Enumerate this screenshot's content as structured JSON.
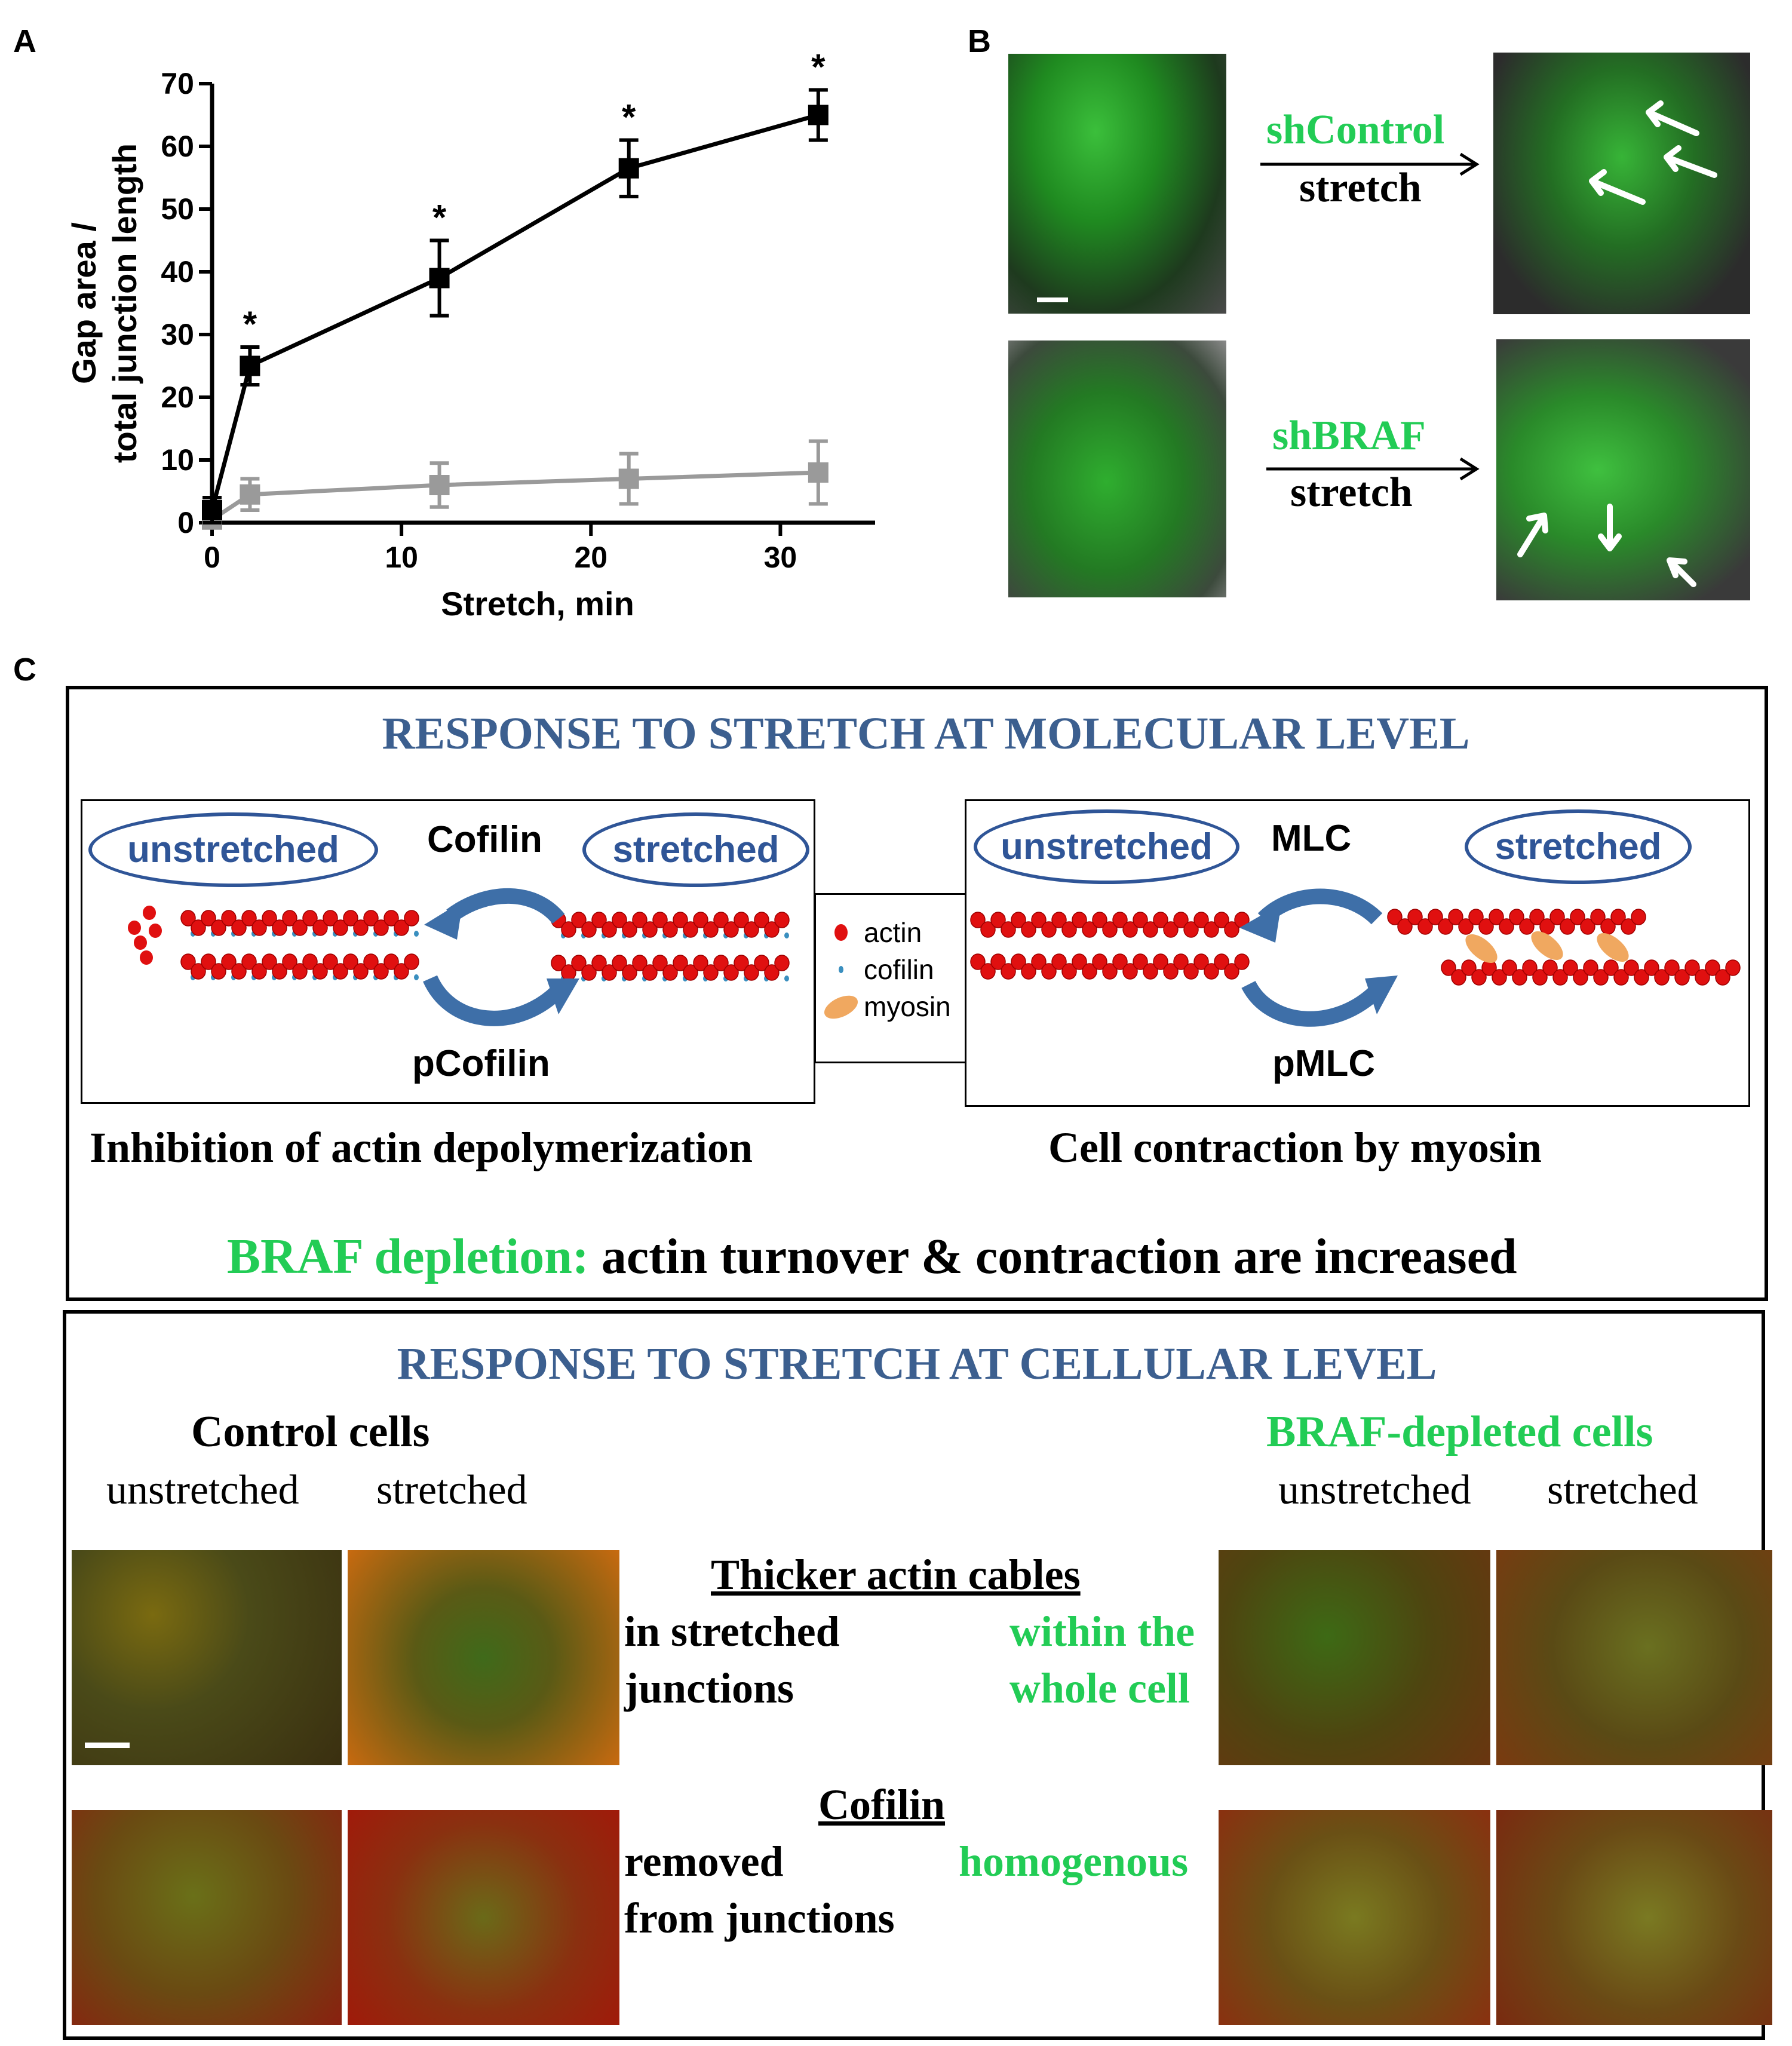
{
  "panels": {
    "A": "A",
    "B": "B",
    "C": "C"
  },
  "chart_data": {
    "type": "line",
    "xlabel": "Stretch, min",
    "ylabel_line1": "Gap area /",
    "ylabel_line2": "total junction length",
    "xlim": [
      0,
      35
    ],
    "ylim": [
      0,
      70
    ],
    "xticks": [
      0,
      10,
      20,
      30
    ],
    "yticks": [
      0,
      10,
      20,
      30,
      40,
      50,
      60,
      70
    ],
    "significance_marker": "*",
    "series": [
      {
        "color": "#000000",
        "x": [
          0,
          2,
          12,
          22,
          32
        ],
        "y": [
          2,
          25,
          39,
          56.5,
          65
        ],
        "err": [
          2,
          3,
          6,
          4.5,
          4
        ],
        "significant": [
          false,
          true,
          true,
          true,
          true
        ]
      },
      {
        "color": "#9a9a9a",
        "x": [
          0,
          2,
          12,
          22,
          32
        ],
        "y": [
          0.5,
          4.5,
          6,
          7,
          8
        ],
        "err": [
          0.5,
          2.5,
          3.5,
          4,
          5
        ],
        "significant": [
          false,
          false,
          false,
          false,
          false
        ]
      }
    ]
  },
  "panelB": {
    "row1_condition": "shControl",
    "row1_action": "stretch",
    "row2_condition": "shBRAF",
    "row2_action": "stretch"
  },
  "molecular": {
    "title": "RESPONSE TO STRETCH  AT MOLECULAR LEVEL",
    "left": {
      "unstretched": "unstretched",
      "stretched": "stretched",
      "top_label": "Cofilin",
      "bottom_label": "pCofilin",
      "caption": "Inhibition of actin depolymerization"
    },
    "legend": [
      "actin",
      "cofilin",
      "myosin"
    ],
    "right": {
      "unstretched": "unstretched",
      "stretched": "stretched",
      "top_label": "MLC",
      "bottom_label": "pMLC",
      "caption": "Cell contraction by myosin"
    },
    "conclusion_highlight": "BRAF depletion:",
    "conclusion_rest": " actin turnover & contraction are increased"
  },
  "cellular": {
    "title": "RESPONSE TO STRETCH  AT CELLULAR LEVEL",
    "control_heading": "Control cells",
    "braf_heading": "BRAF-depleted cells",
    "col_unstretched": "unstretched",
    "col_stretched": "stretched",
    "row1_heading": "Thicker actin cables",
    "row1_left_line1": "in stretched",
    "row1_left_line2": "junctions",
    "row1_right_line1": "within the",
    "row1_right_line2": "whole cell",
    "row2_heading": "Cofilin",
    "row2_left_line1": "removed",
    "row2_left_line2": "from junctions",
    "row2_right": "homogenous"
  }
}
